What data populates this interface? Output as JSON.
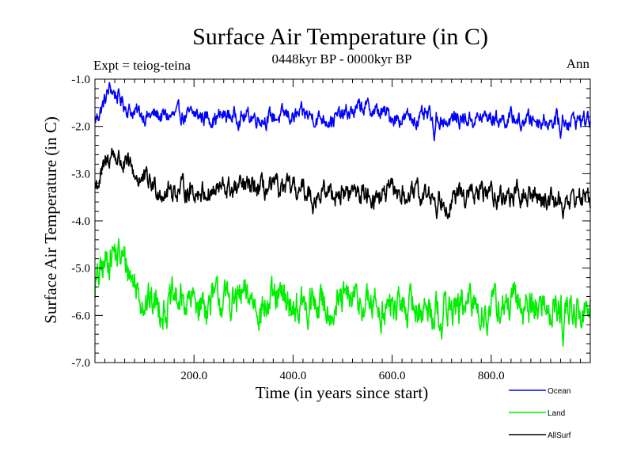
{
  "chart_data": {
    "type": "line",
    "title": "Surface Air Temperature (in C)",
    "subtitle": "0448kyr BP - 0000kyr BP",
    "experiment_label": "Expt = teiog-teina",
    "season_label": "Ann",
    "xlabel": "Time (in years since start)",
    "ylabel": "Surface Air Temperature (in C)",
    "xlim": [
      0,
      1000
    ],
    "ylim": [
      -7.0,
      -1.0
    ],
    "x_ticks": [
      200,
      400,
      600,
      800
    ],
    "x_tick_labels": [
      "200.0",
      "400.0",
      "600.0",
      "800.0"
    ],
    "y_ticks": [
      -1,
      -2,
      -3,
      -4,
      -5,
      -6,
      -7
    ],
    "y_tick_labels": [
      "-1.0",
      "-2.0",
      "-3.0",
      "-4.0",
      "-5.0",
      "-6.0",
      "-7.0"
    ],
    "legend_position": "bottom-right, below plot",
    "series": [
      {
        "name": "Ocean",
        "color": "#0000ff",
        "key_points": [
          [
            0,
            -1.9
          ],
          [
            20,
            -1.45
          ],
          [
            30,
            -1.2
          ],
          [
            45,
            -1.35
          ],
          [
            60,
            -1.55
          ],
          [
            80,
            -1.7
          ],
          [
            100,
            -1.75
          ],
          [
            150,
            -1.8
          ],
          [
            200,
            -1.8
          ],
          [
            300,
            -1.78
          ],
          [
            400,
            -1.8
          ],
          [
            500,
            -1.8
          ],
          [
            540,
            -1.6
          ],
          [
            600,
            -1.8
          ],
          [
            700,
            -1.85
          ],
          [
            800,
            -1.82
          ],
          [
            900,
            -1.85
          ],
          [
            1000,
            -1.85
          ]
        ],
        "noise_amplitude": 0.3,
        "dips": [
          [
            685,
            -2.3
          ],
          [
            940,
            -2.25
          ],
          [
            860,
            -2.1
          ]
        ]
      },
      {
        "name": "Land",
        "color": "#00ee00",
        "key_points": [
          [
            0,
            -5.4
          ],
          [
            15,
            -5.1
          ],
          [
            35,
            -4.6
          ],
          [
            60,
            -4.9
          ],
          [
            90,
            -5.5
          ],
          [
            120,
            -5.75
          ],
          [
            200,
            -5.75
          ],
          [
            300,
            -5.7
          ],
          [
            400,
            -5.8
          ],
          [
            500,
            -5.75
          ],
          [
            600,
            -5.85
          ],
          [
            700,
            -5.85
          ],
          [
            800,
            -5.85
          ],
          [
            900,
            -5.8
          ],
          [
            1000,
            -5.9
          ]
        ],
        "noise_amplitude": 0.65,
        "dips": [
          [
            945,
            -6.65
          ],
          [
            700,
            -6.5
          ],
          [
            430,
            -6.3
          ]
        ]
      },
      {
        "name": "AllSurf",
        "color": "#000000",
        "key_points": [
          [
            0,
            -3.3
          ],
          [
            20,
            -2.9
          ],
          [
            35,
            -2.55
          ],
          [
            55,
            -2.75
          ],
          [
            80,
            -3.05
          ],
          [
            120,
            -3.3
          ],
          [
            200,
            -3.35
          ],
          [
            300,
            -3.35
          ],
          [
            400,
            -3.4
          ],
          [
            500,
            -3.4
          ],
          [
            600,
            -3.45
          ],
          [
            700,
            -3.5
          ],
          [
            800,
            -3.45
          ],
          [
            900,
            -3.5
          ],
          [
            1000,
            -3.5
          ]
        ],
        "noise_amplitude": 0.4,
        "dips": [
          [
            690,
            -3.95
          ],
          [
            945,
            -3.95
          ],
          [
            440,
            -3.85
          ]
        ]
      }
    ]
  }
}
